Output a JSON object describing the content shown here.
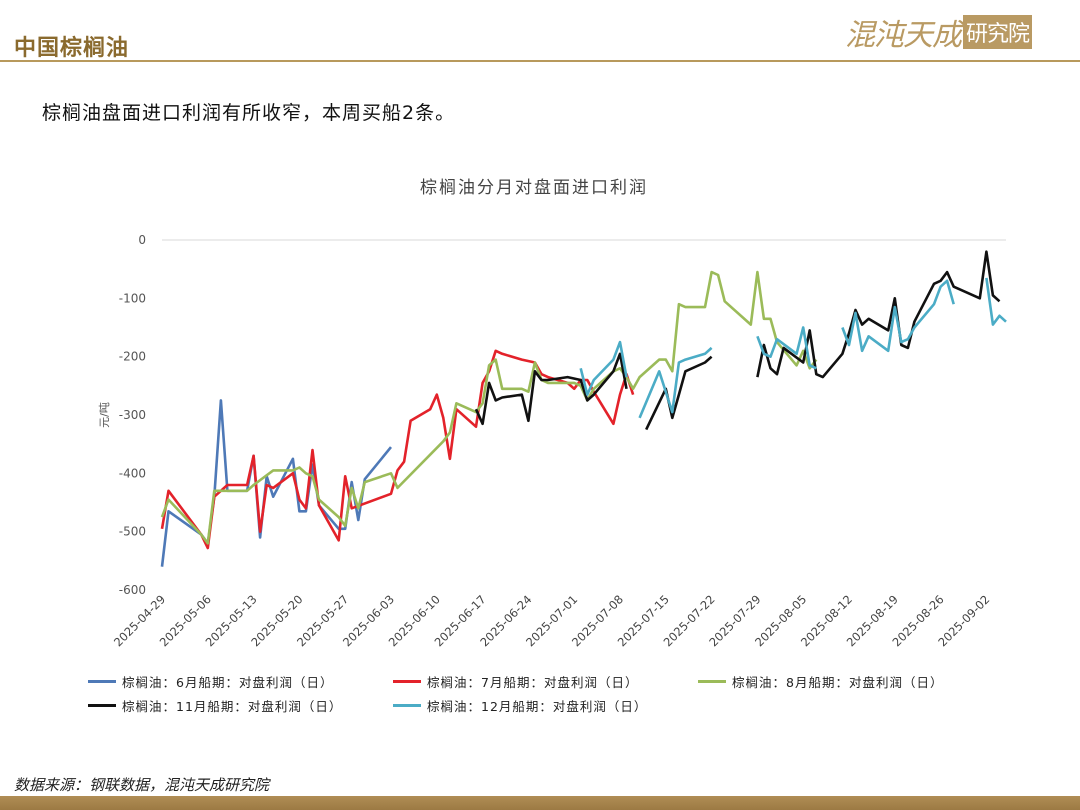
{
  "header": {
    "title": "中国棕榈油"
  },
  "logo": {
    "script_text": "混沌天成",
    "box_text": "研究院"
  },
  "summary": "棕榈油盘面进口利润有所收窄，本周买船2条。",
  "source": "数据来源：钢联数据，混沌天成研究院",
  "colors": {
    "accent": "#b8995c",
    "footer": "#a3834b"
  },
  "chart_data": {
    "type": "line",
    "title": "棕榈油分月对盘面进口利润",
    "ylabel": "元/吨",
    "ylim": [
      -600,
      0
    ],
    "yticks": [
      0,
      -100,
      -200,
      -300,
      -400,
      -500,
      -600
    ],
    "xlim": [
      "2025-04-29",
      "2025-09-05"
    ],
    "xticks": [
      "2025-04-29",
      "2025-05-06",
      "2025-05-13",
      "2025-05-20",
      "2025-05-27",
      "2025-06-03",
      "2025-06-10",
      "2025-06-17",
      "2025-06-24",
      "2025-07-01",
      "2025-07-08",
      "2025-07-15",
      "2025-07-22",
      "2025-07-29",
      "2025-08-05",
      "2025-08-12",
      "2025-08-19",
      "2025-08-26",
      "2025-09-02"
    ],
    "grid": false,
    "legend_position": "bottom",
    "series": [
      {
        "name": "棕榈油：6月船期：对盘利润（日）",
        "color": "#4e79b7",
        "points": [
          [
            "2025-04-29",
            -560
          ],
          [
            "2025-04-30",
            -465
          ],
          [
            "2025-05-05",
            -505
          ],
          [
            "2025-05-06",
            -520
          ],
          [
            "2025-05-07",
            -440
          ],
          [
            "2025-05-08",
            -275
          ],
          [
            "2025-05-09",
            -430
          ],
          [
            "2025-05-12",
            -430
          ],
          [
            "2025-05-13",
            -370
          ],
          [
            "2025-05-14",
            -510
          ],
          [
            "2025-05-15",
            -405
          ],
          [
            "2025-05-16",
            -440
          ],
          [
            "2025-05-19",
            -375
          ],
          [
            "2025-05-20",
            -465
          ],
          [
            "2025-05-21",
            -465
          ],
          [
            "2025-05-22",
            -385
          ],
          [
            "2025-05-23",
            -455
          ],
          [
            "2025-05-26",
            -495
          ],
          [
            "2025-05-27",
            -495
          ],
          [
            "2025-05-28",
            -415
          ],
          [
            "2025-05-29",
            -480
          ],
          [
            "2025-05-30",
            -410
          ],
          [
            "2025-06-03",
            -355
          ]
        ]
      },
      {
        "name": "棕榈油：7月船期：对盘利润（日）",
        "color": "#e3222a",
        "points": [
          [
            "2025-04-29",
            -495
          ],
          [
            "2025-04-30",
            -430
          ],
          [
            "2025-05-05",
            -505
          ],
          [
            "2025-05-06",
            -528
          ],
          [
            "2025-05-07",
            -440
          ],
          [
            "2025-05-09",
            -420
          ],
          [
            "2025-05-12",
            -420
          ],
          [
            "2025-05-13",
            -370
          ],
          [
            "2025-05-14",
            -500
          ],
          [
            "2025-05-15",
            -420
          ],
          [
            "2025-05-16",
            -425
          ],
          [
            "2025-05-19",
            -400
          ],
          [
            "2025-05-20",
            -445
          ],
          [
            "2025-05-21",
            -460
          ],
          [
            "2025-05-22",
            -360
          ],
          [
            "2025-05-23",
            -455
          ],
          [
            "2025-05-26",
            -515
          ],
          [
            "2025-05-27",
            -405
          ],
          [
            "2025-05-28",
            -460
          ],
          [
            "2025-06-03",
            -435
          ],
          [
            "2025-06-04",
            -395
          ],
          [
            "2025-06-05",
            -380
          ],
          [
            "2025-06-06",
            -310
          ],
          [
            "2025-06-09",
            -290
          ],
          [
            "2025-06-10",
            -265
          ],
          [
            "2025-06-11",
            -305
          ],
          [
            "2025-06-12",
            -375
          ],
          [
            "2025-06-13",
            -290
          ],
          [
            "2025-06-16",
            -320
          ],
          [
            "2025-06-17",
            -245
          ],
          [
            "2025-06-18",
            -225
          ],
          [
            "2025-06-19",
            -190
          ],
          [
            "2025-06-20",
            -195
          ],
          [
            "2025-06-23",
            -205
          ],
          [
            "2025-06-25",
            -210
          ],
          [
            "2025-06-26",
            -230
          ],
          [
            "2025-06-27",
            -235
          ],
          [
            "2025-06-30",
            -245
          ],
          [
            "2025-07-01",
            -255
          ],
          [
            "2025-07-02",
            -240
          ],
          [
            "2025-07-03",
            -240
          ],
          [
            "2025-07-04",
            -260
          ],
          [
            "2025-07-07",
            -315
          ],
          [
            "2025-07-08",
            -265
          ],
          [
            "2025-07-09",
            -230
          ],
          [
            "2025-07-10",
            -265
          ]
        ]
      },
      {
        "name": "棕榈油：8月船期：对盘利润（日）",
        "color": "#9bbb59",
        "points": [
          [
            "2025-04-29",
            -475
          ],
          [
            "2025-04-30",
            -445
          ],
          [
            "2025-05-05",
            -505
          ],
          [
            "2025-05-06",
            -520
          ],
          [
            "2025-05-07",
            -430
          ],
          [
            "2025-05-09",
            -430
          ],
          [
            "2025-05-12",
            -430
          ],
          [
            "2025-05-13",
            -420
          ],
          [
            "2025-05-16",
            -395
          ],
          [
            "2025-05-19",
            -395
          ],
          [
            "2025-05-20",
            -390
          ],
          [
            "2025-05-21",
            -400
          ],
          [
            "2025-05-22",
            -405
          ],
          [
            "2025-05-23",
            -445
          ],
          [
            "2025-05-26",
            -475
          ],
          [
            "2025-05-27",
            -490
          ],
          [
            "2025-05-28",
            -425
          ],
          [
            "2025-05-29",
            -460
          ],
          [
            "2025-05-30",
            -415
          ],
          [
            "2025-06-03",
            -400
          ],
          [
            "2025-06-04",
            -425
          ],
          [
            "2025-06-11",
            -345
          ],
          [
            "2025-06-12",
            -330
          ],
          [
            "2025-06-13",
            -280
          ],
          [
            "2025-06-16",
            -295
          ],
          [
            "2025-06-17",
            -280
          ],
          [
            "2025-06-18",
            -215
          ],
          [
            "2025-06-19",
            -205
          ],
          [
            "2025-06-20",
            -255
          ],
          [
            "2025-06-23",
            -255
          ],
          [
            "2025-06-24",
            -260
          ],
          [
            "2025-06-25",
            -210
          ],
          [
            "2025-06-26",
            -240
          ],
          [
            "2025-06-27",
            -245
          ],
          [
            "2025-06-30",
            -245
          ],
          [
            "2025-07-01",
            -245
          ],
          [
            "2025-07-02",
            -250
          ],
          [
            "2025-07-03",
            -275
          ],
          [
            "2025-07-04",
            -255
          ],
          [
            "2025-07-07",
            -225
          ],
          [
            "2025-07-08",
            -220
          ],
          [
            "2025-07-09",
            -235
          ],
          [
            "2025-07-10",
            -255
          ],
          [
            "2025-07-11",
            -235
          ],
          [
            "2025-07-14",
            -205
          ],
          [
            "2025-07-15",
            -205
          ],
          [
            "2025-07-16",
            -225
          ],
          [
            "2025-07-17",
            -110
          ],
          [
            "2025-07-18",
            -115
          ],
          [
            "2025-07-21",
            -115
          ],
          [
            "2025-07-22",
            -55
          ],
          [
            "2025-07-23",
            -60
          ],
          [
            "2025-07-24",
            -105
          ],
          [
            "2025-07-28",
            -145
          ],
          [
            "2025-07-29",
            -55
          ],
          [
            "2025-07-30",
            -135
          ],
          [
            "2025-07-31",
            -135
          ],
          [
            "2025-08-01",
            -175
          ],
          [
            "2025-08-04",
            -215
          ],
          [
            "2025-08-05",
            -190
          ],
          [
            "2025-08-06",
            -220
          ],
          [
            "2025-08-07",
            -205
          ]
        ]
      },
      {
        "name": "棕榈油：11月船期：对盘利润（日）",
        "color": "#111111",
        "points": [
          [
            "2025-06-16",
            -290
          ],
          [
            "2025-06-17",
            -315
          ],
          [
            "2025-06-18",
            -245
          ],
          [
            "2025-06-19",
            -275
          ],
          [
            "2025-06-20",
            -270
          ],
          [
            "2025-06-23",
            -265
          ],
          [
            "2025-06-24",
            -310
          ],
          [
            "2025-06-25",
            -225
          ],
          [
            "2025-06-26",
            -240
          ],
          [
            "2025-06-27",
            -240
          ],
          [
            "2025-06-30",
            -235
          ],
          [
            "2025-07-02",
            -240
          ],
          [
            "2025-07-03",
            -275
          ],
          [
            "2025-07-04",
            -265
          ],
          [
            "2025-07-07",
            -225
          ],
          [
            "2025-07-08",
            -195
          ],
          [
            "2025-07-09",
            -255
          ],
          null,
          [
            "2025-07-12",
            -325
          ],
          [
            "2025-07-15",
            -255
          ],
          [
            "2025-07-16",
            -305
          ],
          [
            "2025-07-17",
            -265
          ],
          [
            "2025-07-18",
            -225
          ],
          [
            "2025-07-21",
            -210
          ],
          [
            "2025-07-22",
            -200
          ],
          null,
          [
            "2025-07-29",
            -235
          ],
          [
            "2025-07-30",
            -180
          ],
          [
            "2025-07-31",
            -220
          ],
          [
            "2025-08-01",
            -230
          ],
          [
            "2025-08-02",
            -185
          ],
          [
            "2025-08-05",
            -210
          ],
          [
            "2025-08-06",
            -155
          ],
          [
            "2025-08-07",
            -230
          ],
          [
            "2025-08-08",
            -235
          ],
          [
            "2025-08-11",
            -195
          ],
          [
            "2025-08-12",
            -160
          ],
          [
            "2025-08-13",
            -120
          ],
          [
            "2025-08-14",
            -145
          ],
          [
            "2025-08-15",
            -135
          ],
          [
            "2025-08-18",
            -155
          ],
          [
            "2025-08-19",
            -100
          ],
          [
            "2025-08-20",
            -180
          ],
          [
            "2025-08-21",
            -185
          ],
          [
            "2025-08-22",
            -140
          ],
          [
            "2025-08-25",
            -75
          ],
          [
            "2025-08-26",
            -70
          ],
          [
            "2025-08-27",
            -55
          ],
          [
            "2025-08-28",
            -80
          ],
          [
            "2025-08-29",
            -85
          ],
          [
            "2025-09-01",
            -100
          ],
          [
            "2025-09-02",
            -20
          ],
          [
            "2025-09-03",
            -95
          ],
          [
            "2025-09-04",
            -105
          ]
        ]
      },
      {
        "name": "棕榈油：12月船期：对盘利润（日）",
        "color": "#4bacc6",
        "points": [
          [
            "2025-06-17",
            -295
          ],
          null,
          [
            "2025-06-25",
            -255
          ],
          null,
          [
            "2025-07-02",
            -220
          ],
          [
            "2025-07-03",
            -265
          ],
          [
            "2025-07-04",
            -240
          ],
          [
            "2025-07-07",
            -205
          ],
          [
            "2025-07-08",
            -175
          ],
          [
            "2025-07-09",
            -235
          ],
          null,
          [
            "2025-07-11",
            -305
          ],
          [
            "2025-07-14",
            -225
          ],
          [
            "2025-07-16",
            -295
          ],
          [
            "2025-07-17",
            -210
          ],
          [
            "2025-07-18",
            -205
          ],
          [
            "2025-07-21",
            -195
          ],
          [
            "2025-07-22",
            -185
          ],
          null,
          [
            "2025-07-29",
            -165
          ],
          [
            "2025-07-30",
            -195
          ],
          [
            "2025-07-31",
            -200
          ],
          [
            "2025-08-01",
            -170
          ],
          [
            "2025-08-04",
            -195
          ],
          [
            "2025-08-05",
            -150
          ],
          [
            "2025-08-06",
            -215
          ],
          [
            "2025-08-07",
            -220
          ],
          null,
          [
            "2025-08-11",
            -150
          ],
          [
            "2025-08-12",
            -180
          ],
          [
            "2025-08-13",
            -125
          ],
          [
            "2025-08-14",
            -190
          ],
          [
            "2025-08-15",
            -165
          ],
          [
            "2025-08-18",
            -190
          ],
          [
            "2025-08-19",
            -115
          ],
          [
            "2025-08-20",
            -175
          ],
          [
            "2025-08-21",
            -170
          ],
          [
            "2025-08-22",
            -150
          ],
          [
            "2025-08-25",
            -110
          ],
          [
            "2025-08-26",
            -80
          ],
          [
            "2025-08-27",
            -70
          ],
          [
            "2025-08-28",
            -110
          ],
          null,
          [
            "2025-09-02",
            -65
          ],
          [
            "2025-09-03",
            -145
          ],
          [
            "2025-09-04",
            -130
          ],
          [
            "2025-09-05",
            -140
          ]
        ]
      }
    ]
  }
}
